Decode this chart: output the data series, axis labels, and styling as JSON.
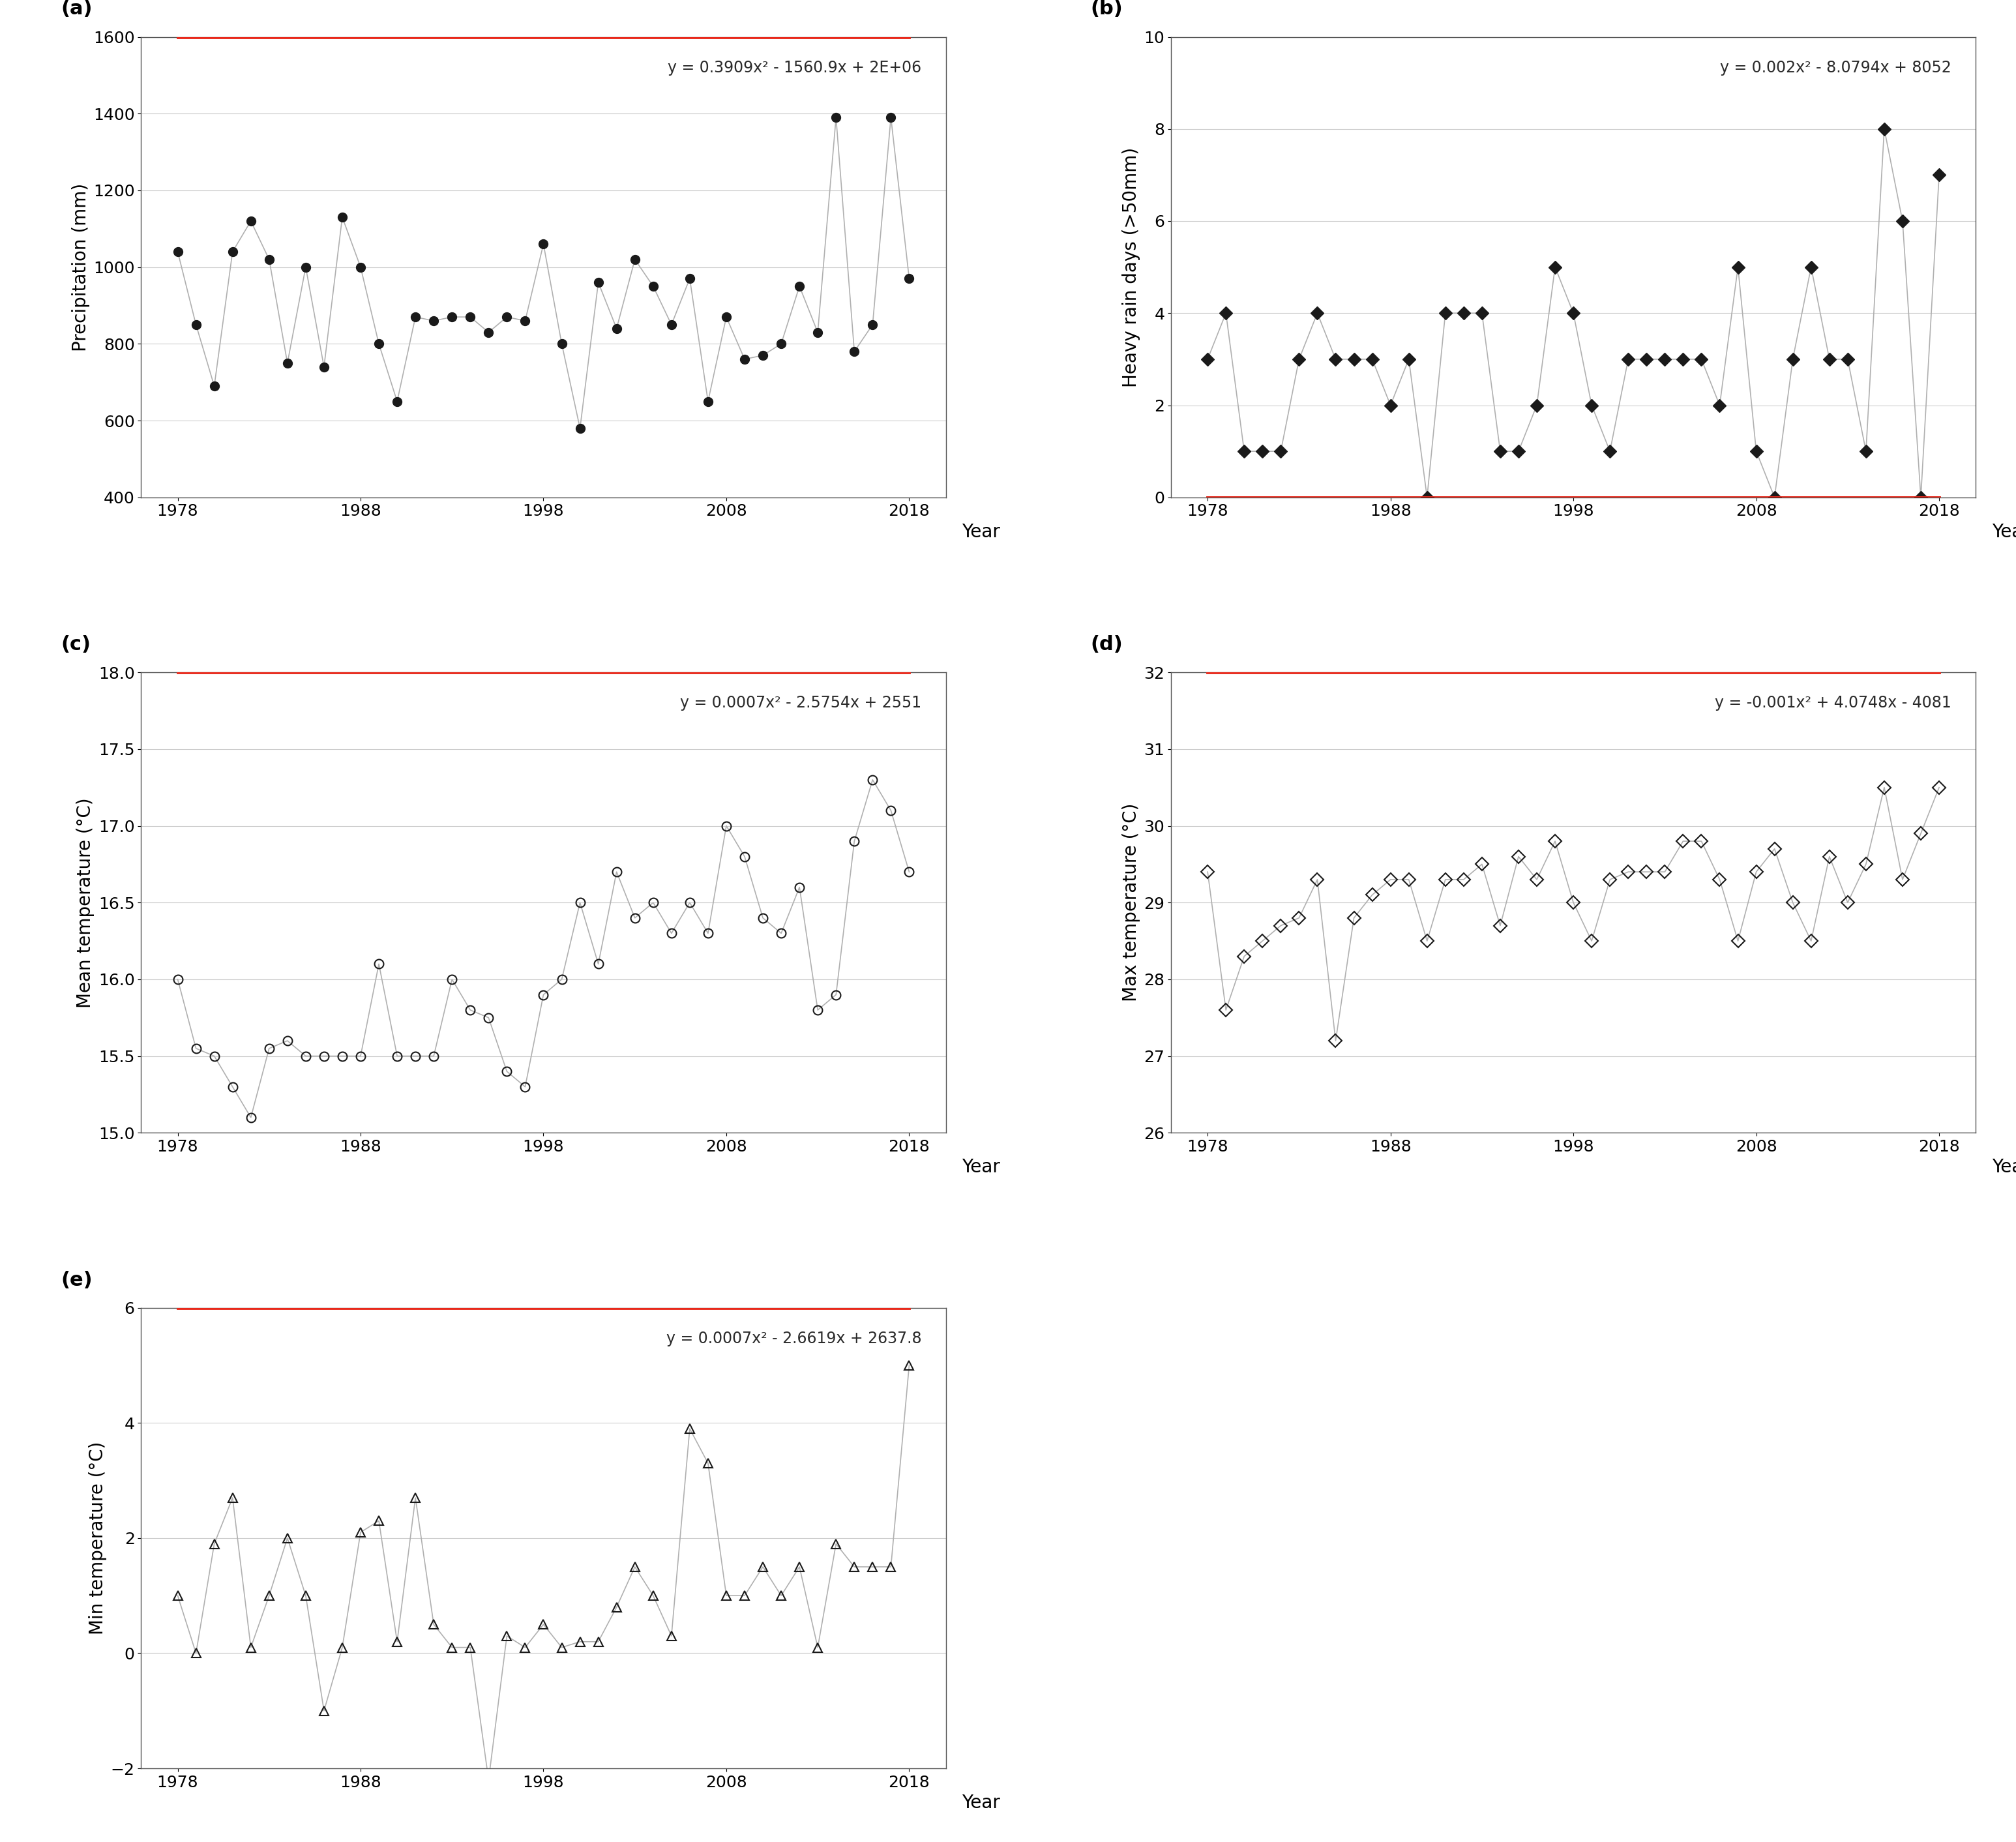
{
  "panel_a": {
    "label": "(a)",
    "years": [
      1978,
      1979,
      1980,
      1981,
      1982,
      1983,
      1984,
      1985,
      1986,
      1987,
      1988,
      1989,
      1990,
      1991,
      1992,
      1993,
      1994,
      1995,
      1996,
      1997,
      1998,
      1999,
      2000,
      2001,
      2002,
      2003,
      2004,
      2005,
      2006,
      2007,
      2008,
      2009,
      2010,
      2011,
      2012,
      2013,
      2014,
      2015,
      2016,
      2017,
      2018
    ],
    "values": [
      1040,
      850,
      690,
      1040,
      1120,
      1020,
      750,
      1000,
      740,
      1130,
      1000,
      800,
      650,
      870,
      860,
      870,
      870,
      830,
      870,
      860,
      1060,
      800,
      580,
      960,
      840,
      1020,
      950,
      850,
      970,
      650,
      870,
      760,
      770,
      800,
      950,
      830,
      1390,
      780,
      850,
      1390,
      970
    ],
    "ylabel": "Precipitation (mm)",
    "ylim": [
      400,
      1600
    ],
    "yticks": [
      400,
      600,
      800,
      1000,
      1200,
      1400,
      1600
    ],
    "equation": "y = 0.3909x² - 1560.9x + 2E+06",
    "poly_coeffs": [
      0.3909,
      -1560.9,
      2000000
    ],
    "marker": "o",
    "marker_filled": true
  },
  "panel_b": {
    "label": "(b)",
    "years": [
      1978,
      1979,
      1980,
      1981,
      1982,
      1983,
      1984,
      1985,
      1986,
      1987,
      1988,
      1989,
      1990,
      1991,
      1992,
      1993,
      1994,
      1995,
      1996,
      1997,
      1998,
      1999,
      2000,
      2001,
      2002,
      2003,
      2004,
      2005,
      2006,
      2007,
      2008,
      2009,
      2010,
      2011,
      2012,
      2013,
      2014,
      2015,
      2016,
      2017,
      2018
    ],
    "values": [
      3,
      4,
      1,
      1,
      1,
      3,
      4,
      3,
      3,
      3,
      2,
      3,
      0,
      4,
      4,
      4,
      1,
      1,
      2,
      5,
      4,
      2,
      1,
      3,
      3,
      3,
      3,
      3,
      2,
      5,
      1,
      0,
      3,
      5,
      3,
      3,
      1,
      8,
      6,
      0,
      7
    ],
    "ylabel": "Heavy rain days (>50mm)",
    "ylim": [
      0,
      10
    ],
    "yticks": [
      0,
      2,
      4,
      6,
      8,
      10
    ],
    "equation": "y = 0.002x² - 8.0794x + 8052",
    "poly_coeffs": [
      0.002,
      -8.0794,
      8052
    ],
    "marker": "D",
    "marker_filled": true
  },
  "panel_c": {
    "label": "(c)",
    "years": [
      1978,
      1979,
      1980,
      1981,
      1982,
      1983,
      1984,
      1985,
      1986,
      1987,
      1988,
      1989,
      1990,
      1991,
      1992,
      1993,
      1994,
      1995,
      1996,
      1997,
      1998,
      1999,
      2000,
      2001,
      2002,
      2003,
      2004,
      2005,
      2006,
      2007,
      2008,
      2009,
      2010,
      2011,
      2012,
      2013,
      2014,
      2015,
      2016,
      2017,
      2018
    ],
    "values": [
      16.0,
      15.55,
      15.5,
      15.3,
      15.1,
      15.55,
      15.6,
      15.5,
      15.5,
      15.5,
      15.5,
      16.1,
      15.5,
      15.5,
      15.5,
      16.0,
      15.8,
      15.75,
      15.4,
      15.3,
      15.9,
      16.0,
      16.5,
      16.1,
      16.7,
      16.4,
      16.5,
      16.3,
      16.5,
      16.3,
      17.0,
      16.8,
      16.4,
      16.3,
      16.6,
      15.8,
      15.9,
      16.9,
      17.3,
      17.1,
      16.7
    ],
    "ylabel": "Mean temperature (°C)",
    "ylim": [
      15,
      18
    ],
    "yticks": [
      15,
      15.5,
      16,
      16.5,
      17,
      17.5,
      18
    ],
    "equation": "y = 0.0007x² - 2.5754x + 2551",
    "poly_coeffs": [
      0.0007,
      -2.5754,
      2551
    ],
    "marker": "o",
    "marker_filled": false
  },
  "panel_d": {
    "label": "(d)",
    "years": [
      1978,
      1979,
      1980,
      1981,
      1982,
      1983,
      1984,
      1985,
      1986,
      1987,
      1988,
      1989,
      1990,
      1991,
      1992,
      1993,
      1994,
      1995,
      1996,
      1997,
      1998,
      1999,
      2000,
      2001,
      2002,
      2003,
      2004,
      2005,
      2006,
      2007,
      2008,
      2009,
      2010,
      2011,
      2012,
      2013,
      2014,
      2015,
      2016,
      2017,
      2018
    ],
    "values": [
      29.4,
      27.6,
      28.3,
      28.5,
      28.7,
      28.8,
      29.3,
      27.2,
      28.8,
      29.1,
      29.3,
      29.3,
      28.5,
      29.3,
      29.3,
      29.5,
      28.7,
      29.6,
      29.3,
      29.8,
      29.0,
      28.5,
      29.3,
      29.4,
      29.4,
      29.4,
      29.8,
      29.8,
      29.3,
      28.5,
      29.4,
      29.7,
      29.0,
      28.5,
      29.6,
      29.0,
      29.5,
      30.5,
      29.3,
      29.9,
      30.5
    ],
    "ylabel": "Max temperature (°C)",
    "ylim": [
      26,
      32
    ],
    "yticks": [
      26,
      27,
      28,
      29,
      30,
      31,
      32
    ],
    "equation": "y = -0.001x² + 4.0748x - 4081",
    "poly_coeffs": [
      -0.001,
      4.0748,
      -4081
    ],
    "marker": "D",
    "marker_filled": false
  },
  "panel_e": {
    "label": "(e)",
    "years": [
      1978,
      1979,
      1980,
      1981,
      1982,
      1983,
      1984,
      1985,
      1986,
      1987,
      1988,
      1989,
      1990,
      1991,
      1992,
      1993,
      1994,
      1995,
      1996,
      1997,
      1998,
      1999,
      2000,
      2001,
      2002,
      2003,
      2004,
      2005,
      2006,
      2007,
      2008,
      2009,
      2010,
      2011,
      2012,
      2013,
      2014,
      2015,
      2016,
      2017,
      2018
    ],
    "values": [
      1.0,
      0.0,
      1.9,
      2.7,
      0.1,
      1.0,
      2.0,
      1.0,
      -1.0,
      0.1,
      2.1,
      2.3,
      0.2,
      2.7,
      0.5,
      0.1,
      0.1,
      -2.2,
      0.3,
      0.1,
      0.5,
      0.1,
      0.2,
      0.2,
      0.8,
      1.5,
      1.0,
      0.3,
      3.9,
      3.3,
      1.0,
      1.0,
      1.5,
      1.0,
      1.5,
      0.1,
      1.9,
      1.5,
      1.5,
      1.5,
      5.0
    ],
    "ylabel": "Min temperature (°C)",
    "ylim": [
      -2,
      6
    ],
    "yticks": [
      -2,
      0,
      2,
      4,
      6
    ],
    "equation": "y = 0.0007x² - 2.6619x + 2637.8",
    "poly_coeffs": [
      0.0007,
      -2.6619,
      2637.8
    ],
    "marker": "^",
    "marker_filled": false
  },
  "xlim": [
    1976,
    2020
  ],
  "xticks": [
    1978,
    1988,
    1998,
    2008,
    2018
  ],
  "trend_color": "#e8291c",
  "data_line_color": "#b0b0b0",
  "data_marker_color": "#1a1a1a",
  "bg_color": "#ffffff",
  "label_fontsize": 20,
  "tick_fontsize": 18,
  "eq_fontsize": 17,
  "panel_label_fontsize": 22,
  "year_fontsize": 20
}
